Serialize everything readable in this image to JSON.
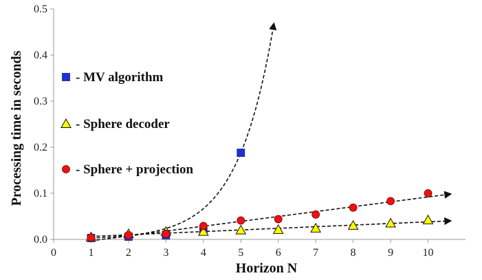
{
  "chart_data": {
    "type": "scatter",
    "title": "",
    "xlabel": "Horizon N",
    "ylabel": "Processing time in seconds",
    "xlim": [
      0,
      11
    ],
    "ylim": [
      0,
      0.5
    ],
    "x_ticks": [
      "0",
      "1",
      "2",
      "3",
      "4",
      "5",
      "6",
      "7",
      "8",
      "9",
      "10"
    ],
    "y_ticks": [
      "0.0",
      "0.1",
      "0.2",
      "0.3",
      "0.4",
      "0.5"
    ],
    "grid": false,
    "legend_position": "left, inside plot",
    "series": [
      {
        "name": "- MV algorithm",
        "marker": "square",
        "color": "#1f2fd6",
        "x": [
          1,
          2,
          3,
          4,
          5
        ],
        "y": [
          0.003,
          0.006,
          0.009,
          0.017,
          0.188
        ],
        "trend": "exponential"
      },
      {
        "name": "- Sphere decoder",
        "marker": "triangle",
        "color": "#ffff00",
        "x": [
          1,
          2,
          3,
          4,
          5,
          6,
          7,
          8,
          9,
          10
        ],
        "y": [
          0.005,
          0.012,
          0.017,
          0.017,
          0.02,
          0.021,
          0.024,
          0.03,
          0.035,
          0.042
        ],
        "trend": "linear"
      },
      {
        "name": "- Sphere + projection",
        "marker": "circle",
        "color": "#ee1111",
        "x": [
          1,
          2,
          3,
          4,
          5,
          6,
          7,
          8,
          9,
          10
        ],
        "y": [
          0.004,
          0.009,
          0.012,
          0.029,
          0.041,
          0.044,
          0.054,
          0.069,
          0.083,
          0.1
        ],
        "trend": "linear"
      }
    ]
  }
}
